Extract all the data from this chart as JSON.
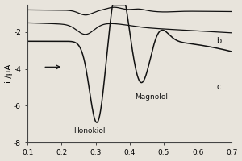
{
  "xlim": [
    0.1,
    0.7
  ],
  "ylim": [
    -8,
    -0.5
  ],
  "xlabel": "",
  "ylabel": "i /μA",
  "yticks": [
    -8,
    -6,
    -4,
    -2
  ],
  "xticks": [
    0.1,
    0.2,
    0.3,
    0.4,
    0.5,
    0.6,
    0.7
  ],
  "label_b": "b",
  "label_c": "c",
  "label_honokiol": "Honokiol",
  "label_magnolol": "Magnolol",
  "background_color": "#e8e4dc",
  "line_color": "#111111"
}
